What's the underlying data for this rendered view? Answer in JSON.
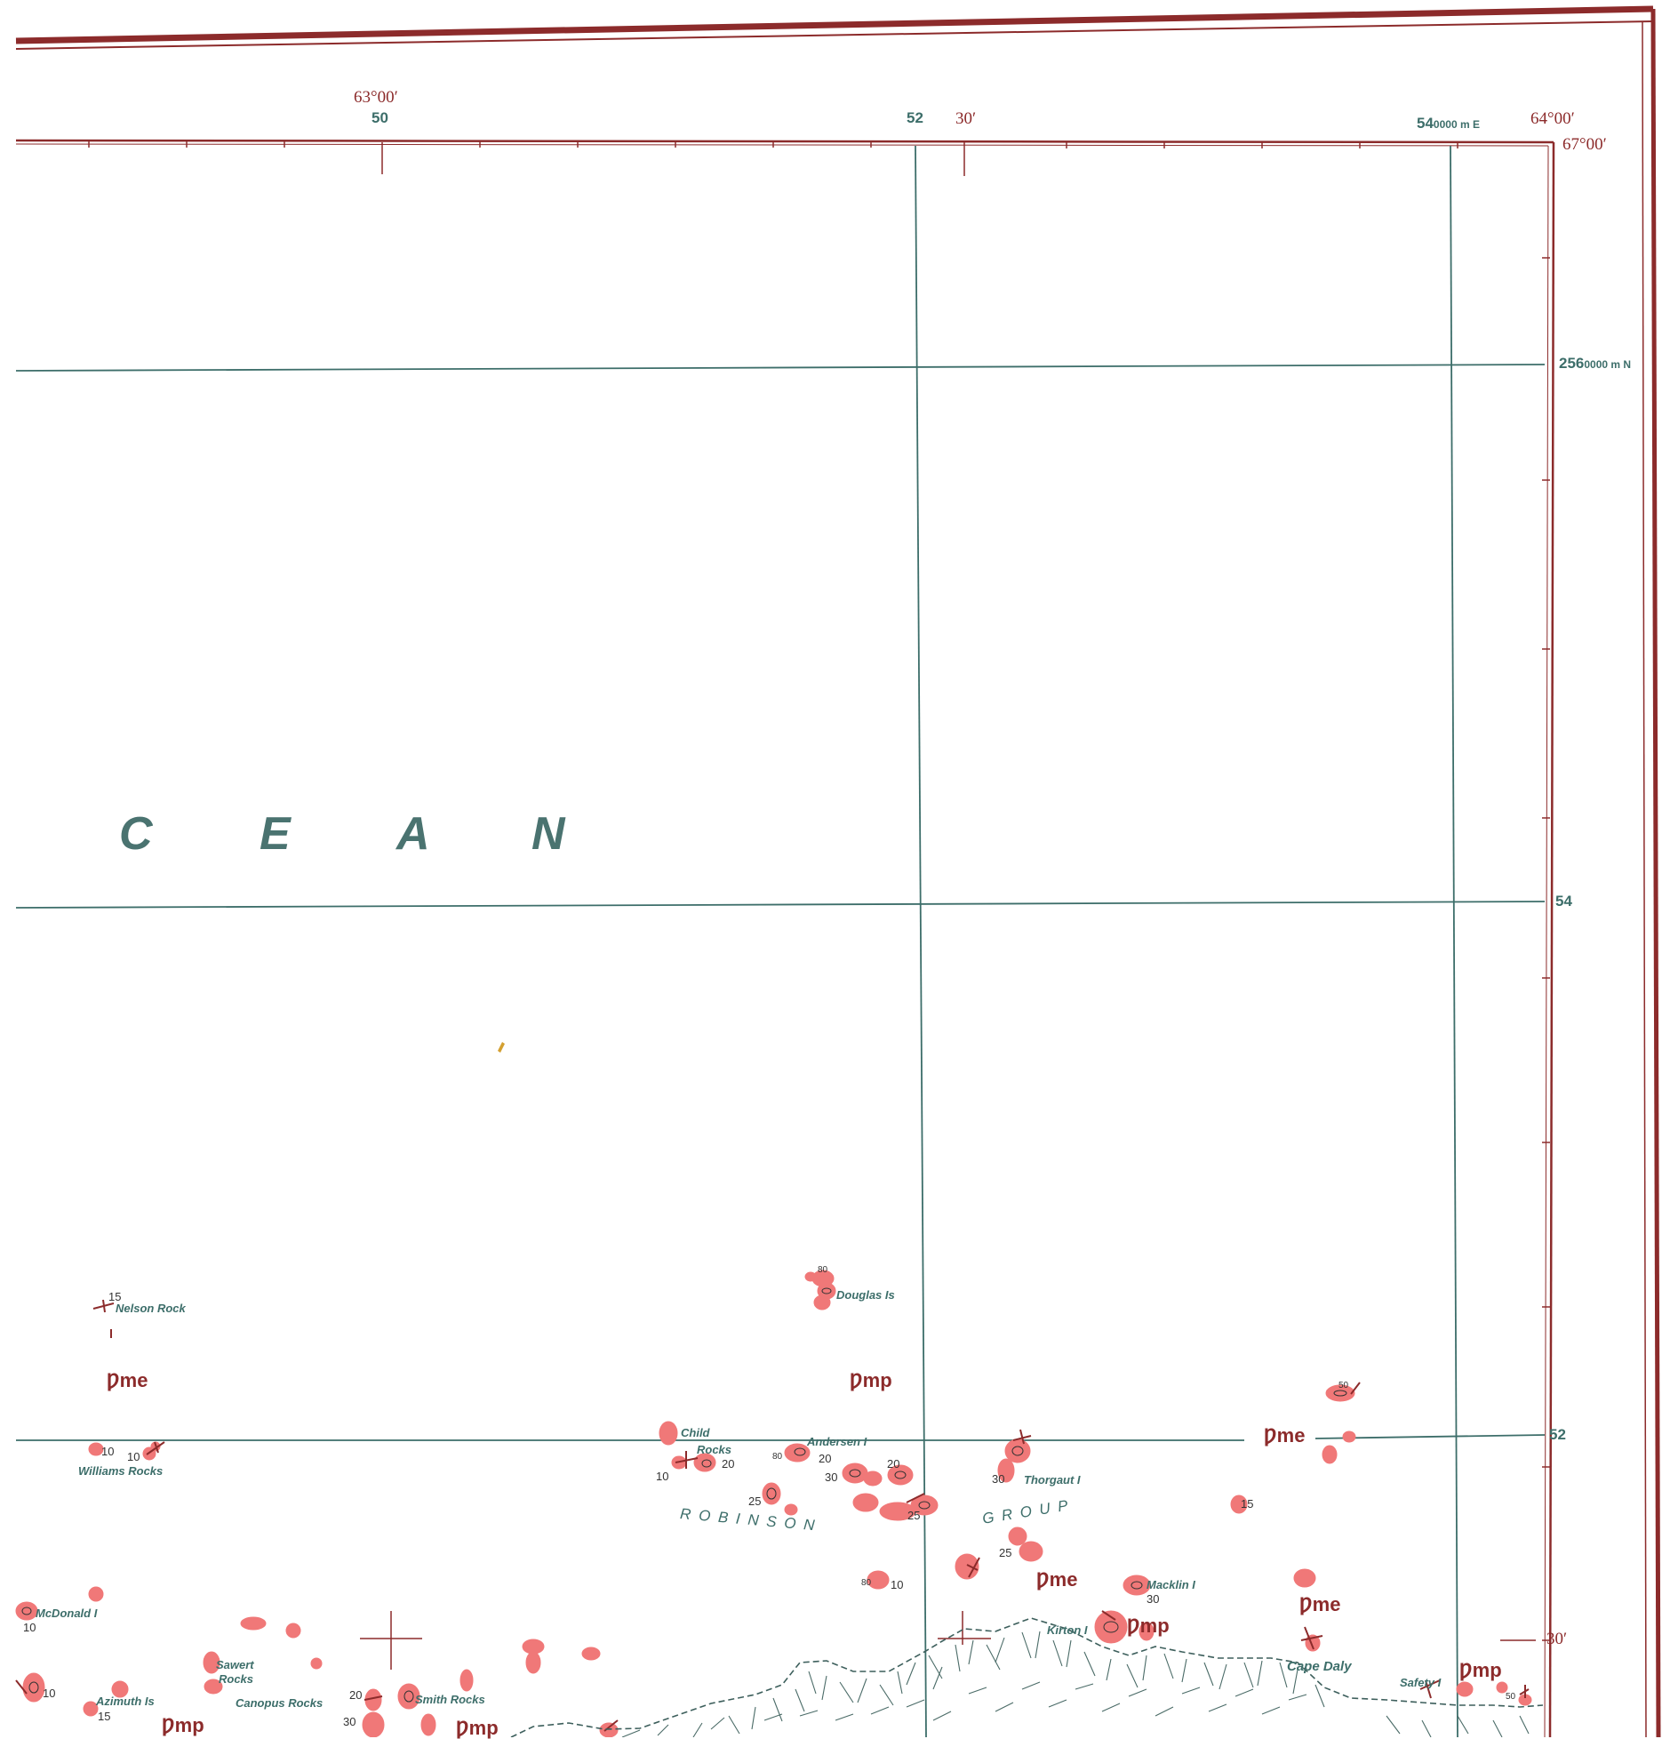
{
  "colors": {
    "frame": "#8c2b2b",
    "grid": "#3d6e6a",
    "rock": "#f07878",
    "coast": "#3d5f5c"
  },
  "graticule": {
    "lon_left": "63°00′",
    "lon_mid": "30′",
    "lon_right": "64°00′",
    "lat_top": "67°00′",
    "lat_30": "30′"
  },
  "grid_labels": {
    "e50": "50",
    "e52": "52",
    "e54_main": "54",
    "e54_unit": "0000 m E",
    "n256_main": "256",
    "n256_unit": "0000 m N",
    "n54": "54",
    "n52": "52"
  },
  "ocean": {
    "letters": [
      "C",
      "E",
      "A",
      "N"
    ]
  },
  "places": {
    "nelson_rock": "Nelson Rock",
    "douglas_is": "Douglas Is",
    "williams_rocks": "Williams Rocks",
    "child_rocks_1": "Child",
    "child_rocks_2": "Rocks",
    "andersen_i": "Andersen I",
    "thorgaut_i": "Thorgaut I",
    "mcdonald_i": "McDonald I",
    "macklin_i": "Macklin I",
    "kirton_i": "Kirton I",
    "cape_daly": "Cape Daly",
    "safety_i": "Safety I",
    "sawert_rocks_1": "Sawert",
    "sawert_rocks_2": "Rocks",
    "azimuth_is": "Azimuth Is",
    "canopus_rocks": "Canopus Rocks",
    "smith_rocks": "Smith Rocks",
    "robinson": "R O B I N S O N",
    "group": "G R O U P"
  },
  "geology_units": {
    "pme": "Ƿme",
    "pmp": "Ƿmp"
  },
  "elevations": [
    "15",
    "10",
    "10",
    "80",
    "10",
    "20",
    "80",
    "20",
    "30",
    "20",
    "25",
    "25",
    "30",
    "50",
    "15",
    "80",
    "10",
    "25",
    "30",
    "10",
    "15",
    "10",
    "20",
    "30",
    "50"
  ]
}
